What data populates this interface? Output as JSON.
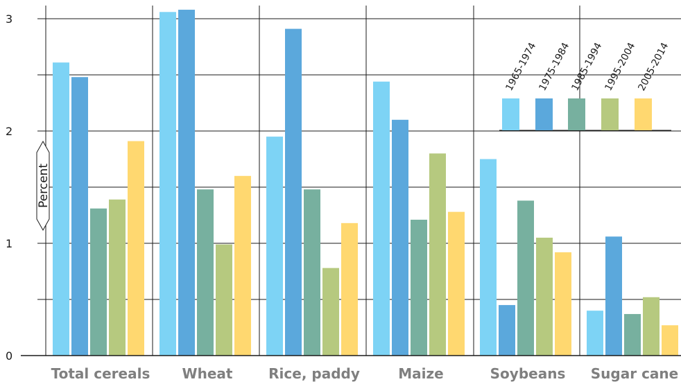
{
  "chart_data": {
    "type": "bar",
    "ylabel": "Percent",
    "ylim": [
      0,
      3.1
    ],
    "yticks": [
      "0",
      "1",
      "2",
      "3"
    ],
    "grid": true,
    "legend_position": "top-right",
    "categories": [
      "Total cereals",
      "Wheat",
      "Rice, paddy",
      "Maize",
      "Soybeans",
      "Sugar cane"
    ],
    "series": [
      {
        "name": "1965-1974",
        "color": "#7dd3f5",
        "values": [
          2.61,
          3.06,
          1.95,
          2.44,
          1.75,
          0.4
        ]
      },
      {
        "name": "1975-1984",
        "color": "#5ba8dc",
        "values": [
          2.48,
          3.08,
          2.91,
          2.1,
          0.45,
          1.06
        ]
      },
      {
        "name": "1985-1994",
        "color": "#77b09f",
        "values": [
          1.31,
          1.48,
          1.48,
          1.21,
          1.38,
          0.37
        ]
      },
      {
        "name": "1995-2004",
        "color": "#b6c97f",
        "values": [
          1.39,
          0.99,
          0.78,
          1.8,
          1.05,
          0.52
        ]
      },
      {
        "name": "2005-2014",
        "color": "#ffd870",
        "values": [
          1.91,
          1.6,
          1.18,
          1.28,
          0.92,
          0.27
        ]
      }
    ]
  }
}
